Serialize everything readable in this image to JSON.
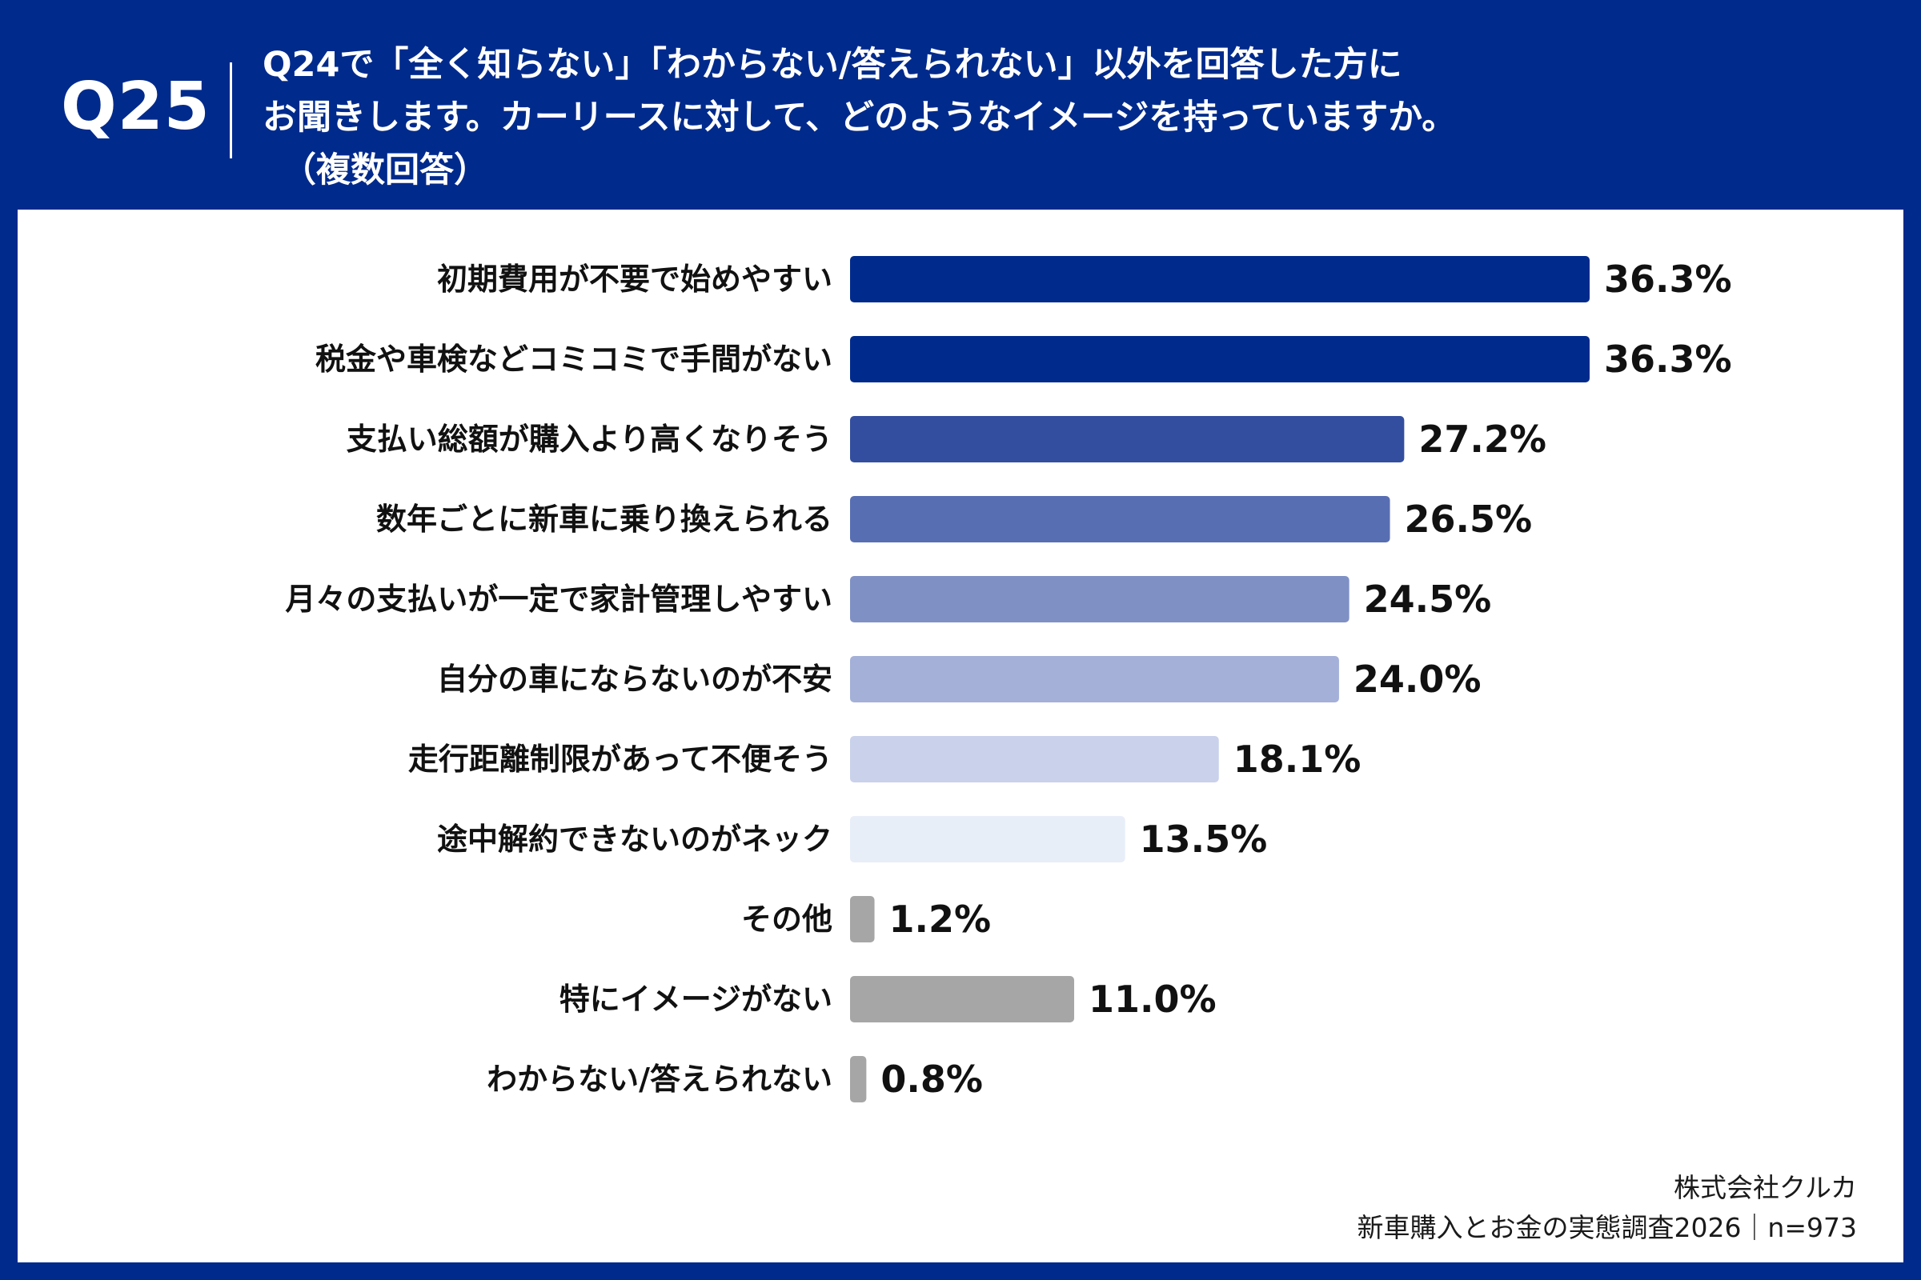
{
  "question": {
    "number": "Q25",
    "line1": "Q24で「全く知らない」「わからない/答えられない」以外を回答した方に",
    "line2": "お聞きします。カーリースに対して、どのようなイメージを持っていますか。",
    "line3": "（複数回答）"
  },
  "footer": {
    "company": "株式会社クルカ",
    "survey": "新車購入とお金の実態調査2026｜n=973"
  },
  "colors": {
    "header_bg": "#002a8c",
    "panel_bg": "#ffffff",
    "text": "#111111"
  },
  "chart_data": {
    "type": "bar",
    "orientation": "horizontal",
    "title": "",
    "xlabel": "",
    "ylabel": "",
    "unit": "%",
    "xlim": [
      0,
      36.3
    ],
    "grid": false,
    "categories": [
      "初期費用が不要で始めやすい",
      "税金や車検などコミコミで手間がない",
      "支払い総額が購入より高くなりそう",
      "数年ごとに新車に乗り換えられる",
      "月々の支払いが一定で家計管理しやすい",
      "自分の車にならないのが不安",
      "走行距離制限があって不便そう",
      "途中解約できないのがネック",
      "その他",
      "特にイメージがない",
      "わからない/答えられない"
    ],
    "values": [
      36.3,
      36.3,
      27.2,
      26.5,
      24.5,
      24.0,
      18.1,
      13.5,
      1.2,
      11.0,
      0.8
    ],
    "value_labels": [
      "36.3%",
      "36.3%",
      "27.2%",
      "26.5%",
      "24.5%",
      "24.0%",
      "18.1%",
      "13.5%",
      "1.2%",
      "11.0%",
      "0.8%"
    ],
    "bar_colors": [
      "#002a8c",
      "#002a8c",
      "#334e9f",
      "#586eb3",
      "#7f90c4",
      "#a4b0d8",
      "#c9d1eb",
      "#e8eef8",
      "#a6a6a6",
      "#a6a6a6",
      "#a6a6a6"
    ]
  }
}
